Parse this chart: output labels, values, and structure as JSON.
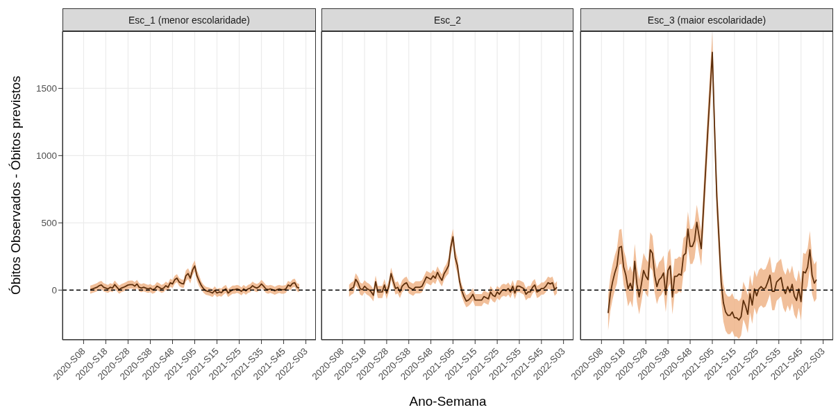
{
  "chart_data": [
    {
      "type": "line",
      "title": "Esc_1 (menor escolaridade)",
      "ylabel": "Óbitos Observados - Óbitos previstos",
      "categories": [
        null,
        null,
        null,
        null,
        null,
        null,
        null,
        null,
        null,
        "2020-S08",
        null,
        null,
        null,
        null,
        null,
        null,
        null,
        null,
        null,
        "2020-S18",
        null,
        null,
        null,
        null,
        null,
        null,
        null,
        null,
        null,
        "2020-S28",
        null,
        null,
        null,
        null,
        null,
        null,
        null,
        null,
        null,
        "2020-S38",
        null,
        null,
        null,
        null,
        null,
        null,
        null,
        null,
        null,
        "2020-S48",
        null,
        null,
        null,
        null,
        null,
        null,
        null,
        null,
        null,
        "2021-S05",
        null,
        null,
        null,
        null,
        null,
        null,
        null,
        null,
        null,
        "2021-S15",
        null,
        null,
        null,
        null,
        null,
        null,
        null,
        null,
        null,
        "2021-S25",
        null,
        null,
        null,
        null,
        null,
        null,
        null,
        null,
        null,
        "2021-S35",
        null,
        null,
        null,
        null,
        null,
        null,
        null,
        null,
        null,
        "2021-S45",
        null,
        null,
        null,
        null,
        null,
        null,
        null,
        null,
        null,
        "2022-S03",
        null,
        null,
        null,
        null
      ],
      "series": [
        {
          "color": "#5c2e0b",
          "values": [
            null,
            null,
            null,
            null,
            null,
            null,
            null,
            null,
            null,
            null,
            null,
            null,
            3,
            9,
            15,
            21,
            33,
            38,
            21,
            15,
            9,
            21,
            15,
            41,
            21,
            3,
            15,
            21,
            29,
            38,
            41,
            41,
            29,
            46,
            21,
            15,
            21,
            15,
            9,
            15,
            3,
            9,
            29,
            21,
            9,
            15,
            33,
            21,
            55,
            46,
            77,
            89,
            60,
            50,
            46,
            106,
            123,
            89,
            149,
            180,
            106,
            67,
            33,
            9,
            -5,
            -9,
            -14,
            -22,
            -2,
            -22,
            -14,
            -19,
            -2,
            9,
            -22,
            -9,
            3,
            3,
            9,
            3,
            -9,
            9,
            -5,
            9,
            15,
            33,
            21,
            15,
            26,
            46,
            29,
            9,
            3,
            9,
            3,
            -5,
            3,
            9,
            3,
            3,
            9,
            38,
            29,
            50,
            55,
            21,
            15,
            null,
            null,
            null,
            null,
            null,
            null,
            null
          ],
          "lower": [
            null,
            null,
            null,
            null,
            null,
            null,
            null,
            null,
            null,
            null,
            null,
            null,
            -27,
            -21,
            -15,
            -9,
            3,
            8,
            -9,
            -15,
            -21,
            -9,
            -15,
            11,
            -9,
            -27,
            -15,
            -9,
            -1,
            8,
            11,
            11,
            -1,
            16,
            -9,
            -15,
            -9,
            -15,
            -21,
            -15,
            -27,
            -21,
            -1,
            -9,
            -21,
            -15,
            3,
            -9,
            25,
            16,
            47,
            59,
            30,
            20,
            16,
            66,
            83,
            49,
            109,
            140,
            66,
            27,
            3,
            -21,
            -35,
            -39,
            -44,
            -52,
            -32,
            -52,
            -44,
            -49,
            -32,
            -21,
            -52,
            -39,
            -27,
            -27,
            -21,
            -27,
            -39,
            -21,
            -35,
            -21,
            -15,
            3,
            -9,
            -15,
            -4,
            16,
            -1,
            -21,
            -27,
            -21,
            -27,
            -35,
            -27,
            -21,
            -27,
            -27,
            -21,
            8,
            -1,
            20,
            25,
            -9,
            -15,
            null,
            null,
            null,
            null,
            null,
            null,
            null
          ],
          "upper": [
            null,
            null,
            null,
            null,
            null,
            null,
            null,
            null,
            null,
            null,
            null,
            null,
            33,
            39,
            45,
            51,
            63,
            68,
            51,
            45,
            39,
            51,
            45,
            71,
            51,
            33,
            45,
            51,
            59,
            68,
            71,
            71,
            59,
            76,
            51,
            45,
            51,
            45,
            39,
            45,
            33,
            39,
            59,
            51,
            39,
            45,
            63,
            51,
            85,
            76,
            107,
            119,
            90,
            80,
            76,
            146,
            163,
            129,
            189,
            220,
            146,
            107,
            63,
            39,
            25,
            21,
            16,
            8,
            28,
            8,
            16,
            11,
            28,
            39,
            8,
            21,
            33,
            33,
            39,
            33,
            21,
            39,
            25,
            39,
            45,
            63,
            51,
            45,
            56,
            76,
            59,
            39,
            33,
            39,
            33,
            25,
            33,
            39,
            33,
            33,
            39,
            68,
            59,
            80,
            85,
            51,
            45,
            null,
            null,
            null,
            null,
            null,
            null,
            null
          ]
        }
      ],
      "ylim": [
        -370,
        1925
      ],
      "yticks": [
        0,
        500,
        1000,
        1500
      ],
      "grid": true,
      "ref_lines": [
        {
          "axis": "y",
          "value": 0,
          "line_style": "dashed",
          "color": "#000000"
        }
      ]
    },
    {
      "type": "line",
      "title": "Esc_2",
      "xlabel": "Ano-Semana",
      "categories": [
        null,
        null,
        null,
        null,
        null,
        null,
        null,
        null,
        null,
        "2020-S08",
        null,
        null,
        null,
        null,
        null,
        null,
        null,
        null,
        null,
        "2020-S18",
        null,
        null,
        null,
        null,
        null,
        null,
        null,
        null,
        null,
        "2020-S28",
        null,
        null,
        null,
        null,
        null,
        null,
        null,
        null,
        null,
        "2020-S38",
        null,
        null,
        null,
        null,
        null,
        null,
        null,
        null,
        null,
        "2020-S48",
        null,
        null,
        null,
        null,
        null,
        null,
        null,
        null,
        null,
        "2021-S05",
        null,
        null,
        null,
        null,
        null,
        null,
        null,
        null,
        null,
        "2021-S15",
        null,
        null,
        null,
        null,
        null,
        null,
        null,
        null,
        null,
        "2021-S25",
        null,
        null,
        null,
        null,
        null,
        null,
        null,
        null,
        null,
        "2021-S35",
        null,
        null,
        null,
        null,
        null,
        null,
        null,
        null,
        null,
        "2021-S45",
        null,
        null,
        null,
        null,
        null,
        null,
        null,
        null,
        null,
        "2022-S03",
        null,
        null,
        null,
        null
      ],
      "series": [
        {
          "color": "#5c2e0b",
          "values": [
            null,
            null,
            null,
            null,
            null,
            null,
            null,
            null,
            null,
            null,
            null,
            null,
            -5,
            12,
            21,
            80,
            55,
            12,
            3,
            29,
            12,
            3,
            -14,
            -39,
            63,
            -14,
            -14,
            -14,
            38,
            -22,
            29,
            123,
            63,
            12,
            21,
            -14,
            29,
            46,
            55,
            21,
            12,
            3,
            21,
            21,
            21,
            29,
            63,
            98,
            89,
            80,
            106,
            89,
            132,
            98,
            72,
            123,
            149,
            183,
            320,
            397,
            243,
            183,
            63,
            -5,
            -48,
            -82,
            -74,
            -57,
            -31,
            -74,
            -74,
            -74,
            -74,
            -48,
            -57,
            -65,
            -14,
            -39,
            -48,
            -14,
            -31,
            -5,
            3,
            -5,
            12,
            -14,
            29,
            -22,
            29,
            29,
            21,
            12,
            -31,
            -14,
            -14,
            21,
            38,
            -14,
            -5,
            12,
            12,
            29,
            55,
            46,
            55,
            3,
            21,
            null,
            null,
            null,
            null,
            null,
            null,
            null
          ],
          "lower": [
            null,
            null,
            null,
            null,
            null,
            null,
            null,
            null,
            null,
            null,
            null,
            null,
            -50,
            -33,
            -24,
            35,
            10,
            -33,
            -42,
            -16,
            -33,
            -42,
            -59,
            -84,
            18,
            -59,
            -59,
            -59,
            -7,
            -67,
            -16,
            78,
            18,
            -33,
            -24,
            -59,
            -16,
            1,
            10,
            -24,
            -33,
            -42,
            -24,
            -24,
            -24,
            -16,
            18,
            53,
            44,
            35,
            61,
            44,
            87,
            53,
            27,
            78,
            104,
            123,
            260,
            337,
            183,
            123,
            18,
            -50,
            -93,
            -127,
            -119,
            -102,
            -76,
            -119,
            -119,
            -119,
            -119,
            -93,
            -102,
            -110,
            -59,
            -84,
            -93,
            -59,
            -76,
            -50,
            -42,
            -50,
            -33,
            -59,
            -16,
            -67,
            -16,
            -16,
            -24,
            -33,
            -76,
            -59,
            -59,
            -24,
            -7,
            -59,
            -50,
            -33,
            -33,
            -16,
            10,
            1,
            10,
            -42,
            -24,
            null,
            null,
            null,
            null,
            null,
            null,
            null
          ],
          "upper": [
            null,
            null,
            null,
            null,
            null,
            null,
            null,
            null,
            null,
            null,
            null,
            null,
            40,
            57,
            66,
            125,
            100,
            57,
            48,
            74,
            57,
            48,
            31,
            6,
            108,
            31,
            31,
            31,
            83,
            23,
            74,
            168,
            108,
            57,
            66,
            31,
            74,
            91,
            100,
            66,
            57,
            48,
            66,
            66,
            66,
            74,
            108,
            143,
            134,
            125,
            151,
            134,
            177,
            143,
            117,
            168,
            194,
            243,
            380,
            457,
            303,
            243,
            108,
            40,
            -3,
            -37,
            -29,
            -12,
            14,
            -29,
            -29,
            -29,
            -29,
            -3,
            -12,
            -20,
            31,
            6,
            -3,
            31,
            14,
            40,
            48,
            40,
            57,
            31,
            74,
            23,
            74,
            74,
            66,
            57,
            14,
            31,
            31,
            66,
            83,
            31,
            40,
            57,
            57,
            74,
            100,
            91,
            100,
            48,
            66,
            null,
            null,
            null,
            null,
            null,
            null,
            null
          ]
        }
      ],
      "ylim": [
        -370,
        1925
      ],
      "yticks": [
        0,
        500,
        1000,
        1500
      ],
      "grid": true,
      "tick_labels": "x",
      "ref_lines": [
        {
          "axis": "y",
          "value": 0,
          "line_style": "dashed",
          "color": "#000000"
        }
      ]
    },
    {
      "type": "line",
      "title": "Esc_3 (maior escolaridade)",
      "categories": [
        null,
        null,
        null,
        null,
        null,
        null,
        null,
        null,
        null,
        "2020-S08",
        null,
        null,
        null,
        null,
        null,
        null,
        null,
        null,
        null,
        "2020-S18",
        null,
        null,
        null,
        null,
        null,
        null,
        null,
        null,
        null,
        "2020-S28",
        null,
        null,
        null,
        null,
        null,
        null,
        null,
        null,
        null,
        "2020-S38",
        null,
        null,
        null,
        null,
        null,
        null,
        null,
        null,
        null,
        "2020-S48",
        null,
        null,
        null,
        null,
        null,
        null,
        null,
        null,
        null,
        "2021-S05",
        null,
        null,
        null,
        null,
        null,
        null,
        null,
        null,
        null,
        "2021-S15",
        null,
        null,
        null,
        null,
        null,
        null,
        null,
        null,
        null,
        "2021-S25",
        null,
        null,
        null,
        null,
        null,
        null,
        null,
        null,
        null,
        "2021-S35",
        null,
        null,
        null,
        null,
        null,
        null,
        null,
        null,
        null,
        "2021-S45",
        null,
        null,
        null,
        null,
        null,
        null,
        null,
        null,
        null,
        "2022-S03",
        null,
        null,
        null,
        null
      ],
      "series": [
        {
          "color": "#5c2e0b",
          "values": [
            null,
            null,
            null,
            null,
            null,
            null,
            null,
            null,
            null,
            null,
            null,
            null,
            -171,
            -26,
            60,
            128,
            180,
            317,
            325,
            171,
            111,
            9,
            51,
            0,
            214,
            43,
            -51,
            43,
            146,
            103,
            77,
            300,
            274,
            111,
            26,
            77,
            94,
            128,
            -34,
            146,
            180,
            -51,
            103,
            103,
            120,
            111,
            257,
            274,
            454,
            325,
            325,
            368,
            505,
            403,
            308,
            600,
            900,
            1200,
            1480,
            1768,
            1210,
            700,
            385,
            60,
            -94,
            -163,
            -188,
            -188,
            -163,
            -206,
            -206,
            -223,
            -197,
            -77,
            -120,
            -180,
            -26,
            -111,
            9,
            -43,
            9,
            26,
            9,
            17,
            60,
            111,
            -9,
            -9,
            60,
            77,
            94,
            9,
            -26,
            26,
            -17,
            43,
            -43,
            -77,
            9,
            -86,
            137,
            128,
            171,
            300,
            111,
            51,
            77,
            null,
            null,
            null,
            null,
            null,
            null,
            null
          ],
          "lower": [
            null,
            null,
            null,
            null,
            null,
            null,
            null,
            null,
            null,
            null,
            null,
            null,
            -301,
            -156,
            -70,
            -2,
            50,
            187,
            195,
            41,
            -19,
            -121,
            -79,
            -130,
            84,
            -87,
            -181,
            -87,
            16,
            -27,
            -53,
            170,
            144,
            -19,
            -104,
            -53,
            -36,
            -2,
            -164,
            16,
            50,
            -181,
            -27,
            -27,
            -10,
            -19,
            127,
            144,
            324,
            195,
            195,
            238,
            375,
            273,
            178,
            450,
            750,
            1050,
            1330,
            1618,
            1060,
            550,
            245,
            -80,
            -234,
            -303,
            -328,
            -328,
            -303,
            -346,
            -346,
            -363,
            -337,
            -217,
            -260,
            -320,
            -166,
            -251,
            -131,
            -183,
            -131,
            -114,
            -131,
            -123,
            -80,
            -29,
            -149,
            -149,
            -80,
            -63,
            -46,
            -131,
            -166,
            -114,
            -157,
            -97,
            -183,
            -217,
            -131,
            -226,
            -3,
            -12,
            31,
            160,
            -29,
            -89,
            -63,
            null,
            null,
            null,
            null,
            null,
            null,
            null
          ],
          "upper": [
            null,
            null,
            null,
            null,
            null,
            null,
            null,
            null,
            null,
            null,
            null,
            null,
            -41,
            104,
            190,
            258,
            310,
            447,
            455,
            301,
            241,
            139,
            181,
            130,
            344,
            173,
            79,
            173,
            276,
            233,
            207,
            430,
            404,
            241,
            156,
            207,
            224,
            258,
            96,
            276,
            310,
            79,
            233,
            233,
            250,
            241,
            387,
            404,
            584,
            455,
            455,
            498,
            635,
            533,
            438,
            750,
            1050,
            1350,
            1630,
            1918,
            1360,
            850,
            525,
            200,
            46,
            -23,
            -48,
            -48,
            -23,
            -66,
            -66,
            -83,
            -57,
            63,
            20,
            -40,
            114,
            29,
            149,
            97,
            149,
            166,
            149,
            157,
            200,
            251,
            131,
            131,
            200,
            217,
            234,
            149,
            114,
            166,
            123,
            183,
            97,
            63,
            149,
            54,
            277,
            268,
            311,
            440,
            251,
            191,
            217,
            null,
            null,
            null,
            null,
            null,
            null,
            null
          ]
        }
      ],
      "ylim": [
        -370,
        1925
      ],
      "yticks": [
        0,
        500,
        1000,
        1500
      ],
      "grid": true,
      "tick_labels": "x",
      "ref_lines": [
        {
          "axis": "y",
          "value": 0,
          "line_style": "dashed",
          "color": "#000000"
        }
      ]
    }
  ]
}
